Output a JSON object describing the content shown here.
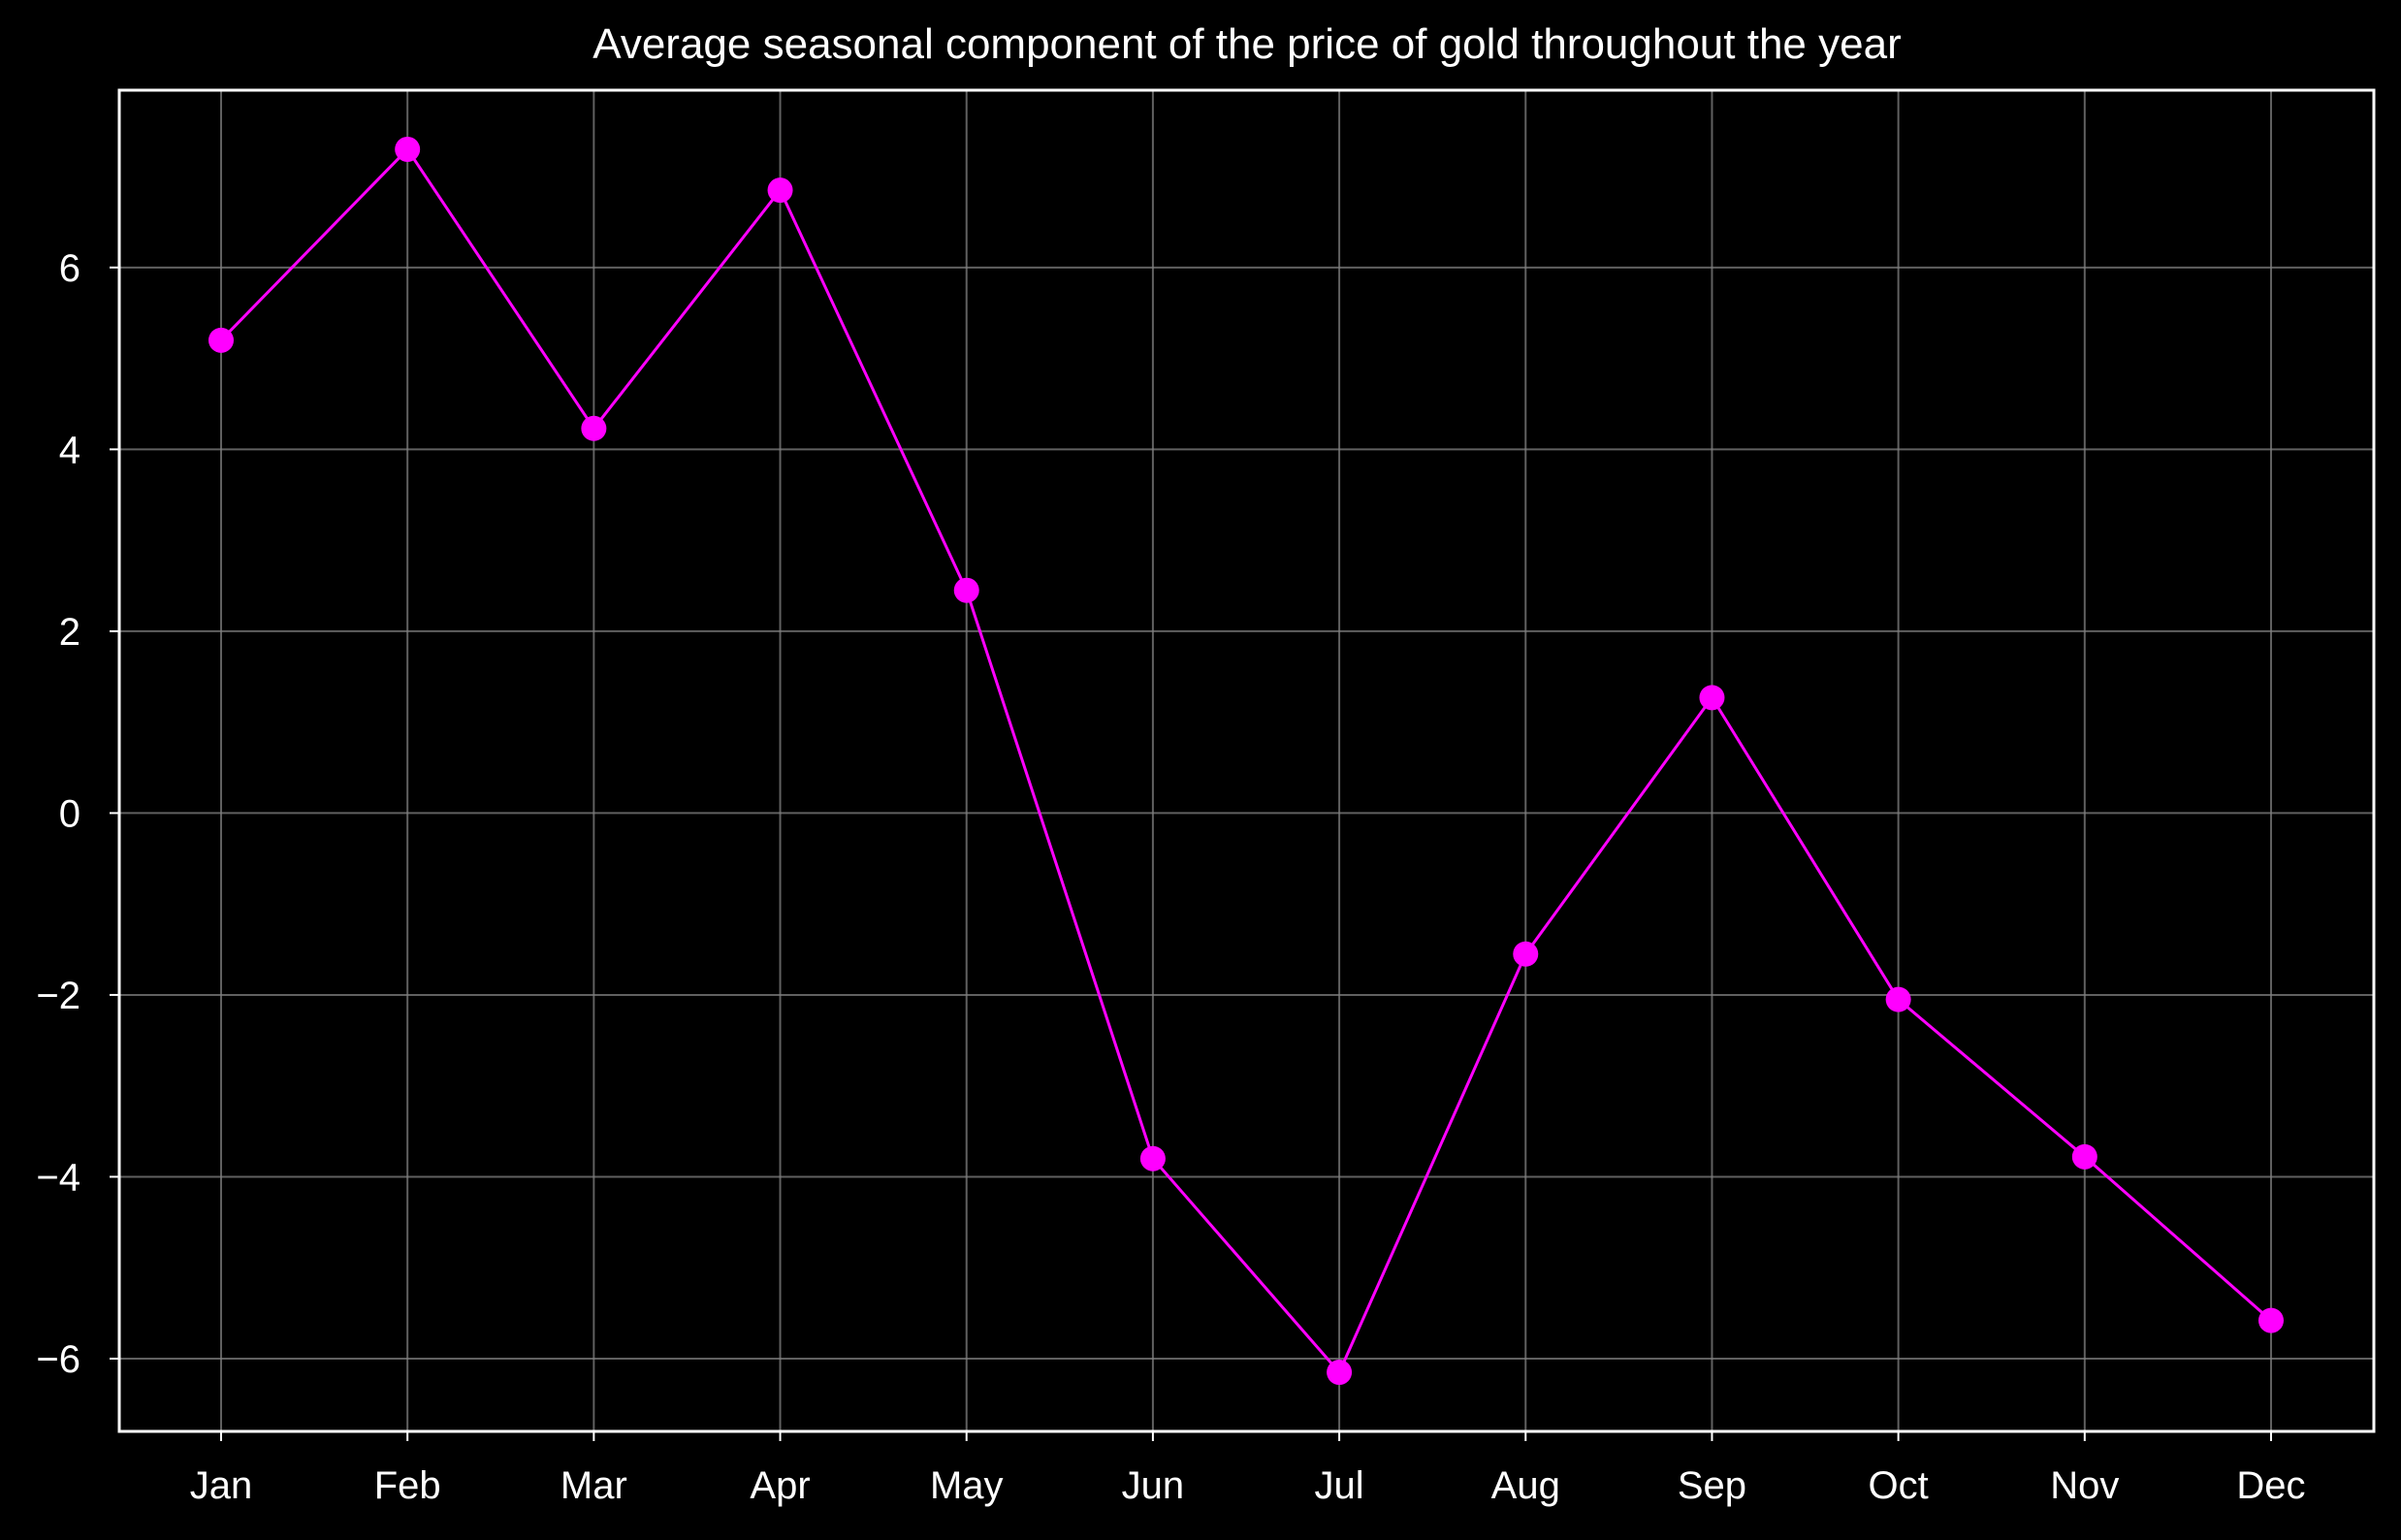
{
  "colors": {
    "background": "#000000",
    "axes": "#ffffff",
    "grid": "#808080",
    "line": "#ff00ff",
    "text": "#ffffff"
  },
  "chart_data": {
    "type": "line",
    "title": "Average seasonal component of the price of gold throughout the year",
    "xlabel": "",
    "ylabel": "",
    "categories": [
      "Jan",
      "Feb",
      "Mar",
      "Apr",
      "May",
      "Jun",
      "Jul",
      "Aug",
      "Sep",
      "Oct",
      "Nov",
      "Dec"
    ],
    "series": [
      {
        "values": [
          5.2,
          7.3,
          4.23,
          6.85,
          2.45,
          -3.8,
          -6.15,
          -1.55,
          1.27,
          -2.05,
          -3.78,
          -5.58
        ],
        "marker": "circle"
      }
    ],
    "ylim": [
      -6.8,
      7.95
    ],
    "yticks": [
      -6,
      -4,
      -2,
      0,
      2,
      4,
      6
    ],
    "ytick_labels": [
      "−6",
      "−4",
      "−2",
      "0",
      "2",
      "4",
      "6"
    ],
    "grid": true,
    "legend": "none"
  }
}
